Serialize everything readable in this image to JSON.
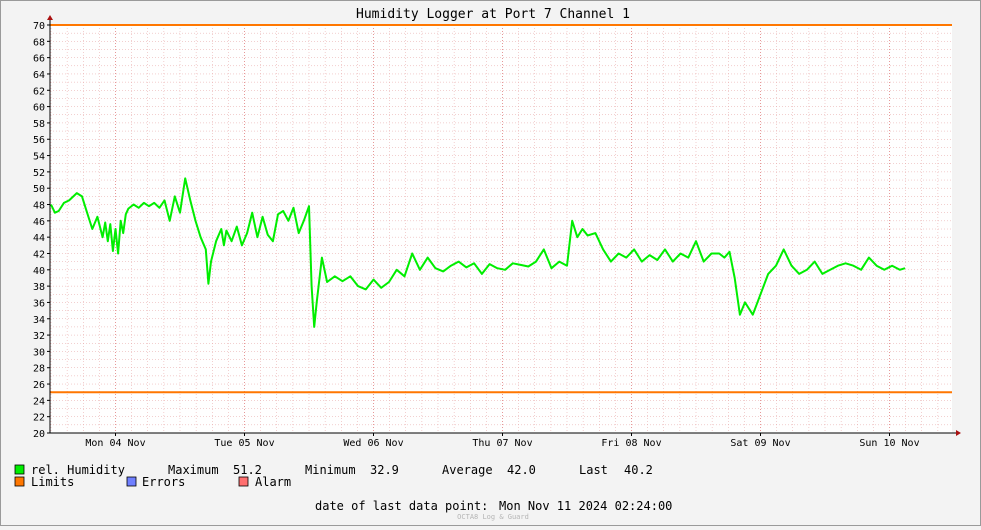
{
  "chart_data": {
    "type": "line",
    "title": "Humidity Logger at Port 7 Channel 1",
    "ylim": [
      20,
      70
    ],
    "y_ticks": [
      20,
      22,
      24,
      26,
      28,
      30,
      32,
      34,
      36,
      38,
      40,
      42,
      44,
      46,
      48,
      50,
      52,
      54,
      56,
      58,
      60,
      62,
      64,
      66,
      68,
      70
    ],
    "x_tick_labels": [
      "Mon 04 Nov",
      "Tue 05 Nov",
      "Wed 06 Nov",
      "Thu 07 Nov",
      "Fri 08 Nov",
      "Sat 09 Nov",
      "Sun 10 Nov"
    ],
    "grid": true,
    "limits": [
      {
        "value": 70,
        "color": "#ff7700"
      },
      {
        "value": 25,
        "color": "#ff7700"
      }
    ],
    "series": [
      {
        "name": "rel. Humidity",
        "color": "#00ee00",
        "x_days": [
          0.0,
          0.03,
          0.06,
          0.1,
          0.14,
          0.2,
          0.24,
          0.28,
          0.32,
          0.36,
          0.4,
          0.42,
          0.44,
          0.46,
          0.48,
          0.5,
          0.52,
          0.54,
          0.56,
          0.58,
          0.6,
          0.64,
          0.68,
          0.72,
          0.76,
          0.8,
          0.84,
          0.88,
          0.92,
          0.96,
          1.0,
          1.04,
          1.08,
          1.12,
          1.16,
          1.2,
          1.22,
          1.24,
          1.28,
          1.32,
          1.34,
          1.36,
          1.4,
          1.44,
          1.48,
          1.52,
          1.56,
          1.6,
          1.64,
          1.68,
          1.72,
          1.76,
          1.8,
          1.84,
          1.88,
          1.92,
          1.96,
          2.0,
          2.02,
          2.04,
          2.06,
          2.1,
          2.14,
          2.2,
          2.26,
          2.32,
          2.38,
          2.44,
          2.5,
          2.56,
          2.62,
          2.68,
          2.74,
          2.8,
          2.86,
          2.92,
          2.98,
          3.04,
          3.1,
          3.16,
          3.22,
          3.28,
          3.34,
          3.4,
          3.46,
          3.52,
          3.58,
          3.64,
          3.7,
          3.76,
          3.82,
          3.88,
          3.94,
          4.0,
          4.04,
          4.08,
          4.12,
          4.16,
          4.22,
          4.28,
          4.34,
          4.4,
          4.46,
          4.52,
          4.58,
          4.64,
          4.7,
          4.76,
          4.82,
          4.88,
          4.94,
          5.0,
          5.06,
          5.12,
          5.18,
          5.22,
          5.26,
          5.3,
          5.34,
          5.38,
          5.44,
          5.5,
          5.56,
          5.62,
          5.68,
          5.74,
          5.8,
          5.86,
          5.92,
          5.98,
          6.04,
          6.1,
          6.16,
          6.22,
          6.28,
          6.34,
          6.4,
          6.46,
          6.52,
          6.58,
          6.62
        ],
        "values": [
          48.0,
          47.0,
          47.2,
          48.2,
          48.5,
          49.4,
          49.0,
          47.0,
          45.0,
          46.5,
          44.0,
          45.8,
          43.5,
          45.6,
          42.3,
          45.0,
          42.0,
          46.0,
          44.5,
          46.8,
          47.5,
          48.0,
          47.6,
          48.2,
          47.8,
          48.2,
          47.6,
          48.5,
          46.0,
          49.0,
          47.0,
          51.2,
          48.5,
          46.0,
          44.0,
          42.5,
          38.3,
          41.0,
          43.5,
          45.0,
          43.0,
          44.8,
          43.5,
          45.3,
          43.0,
          44.5,
          47.0,
          44.0,
          46.5,
          44.3,
          43.5,
          46.8,
          47.2,
          46.0,
          47.6,
          44.5,
          46.0,
          47.8,
          38.0,
          33.0,
          36.0,
          41.5,
          38.5,
          39.2,
          38.6,
          39.2,
          38.0,
          37.6,
          38.8,
          37.8,
          38.5,
          40.0,
          39.2,
          42.0,
          40.0,
          41.5,
          40.2,
          39.8,
          40.5,
          41.0,
          40.3,
          40.8,
          39.5,
          40.7,
          40.2,
          40.0,
          40.8,
          40.6,
          40.4,
          41.0,
          42.5,
          40.2,
          41.0,
          40.5,
          46.0,
          44.0,
          45.0,
          44.2,
          44.5,
          42.5,
          41.0,
          42.0,
          41.5,
          42.5,
          41.0,
          41.8,
          41.2,
          42.5,
          41.0,
          42.0,
          41.5,
          43.5,
          41.0,
          42.0,
          42.0,
          41.5,
          42.2,
          39.0,
          34.5,
          36.0,
          34.5,
          37.0,
          39.5,
          40.5,
          42.5,
          40.5,
          39.5,
          40.0,
          41.0,
          39.5,
          40.0,
          40.5,
          40.8,
          40.5,
          40.0,
          41.5,
          40.5,
          40.0,
          40.5,
          40.0,
          40.2
        ]
      }
    ],
    "stats": {
      "maximum_label": "Maximum",
      "maximum": "51.2",
      "minimum_label": "Minimum",
      "minimum": "32.9",
      "average_label": "Average",
      "average": "42.0",
      "last_label": "Last",
      "last": "40.2"
    },
    "legend": [
      {
        "label": "rel. Humidity",
        "color": "#00ee00"
      },
      {
        "label": "Limits",
        "color": "#ff7700"
      },
      {
        "label": "Errors",
        "color": "#6f7fff"
      },
      {
        "label": "Alarm",
        "color": "#ff6f6f"
      }
    ],
    "footer": {
      "last_point_label": "date of last data point:",
      "last_point_value": "Mon Nov 11 2024 02:24:00",
      "watermark": "OCTA8 Log & Guard"
    }
  }
}
